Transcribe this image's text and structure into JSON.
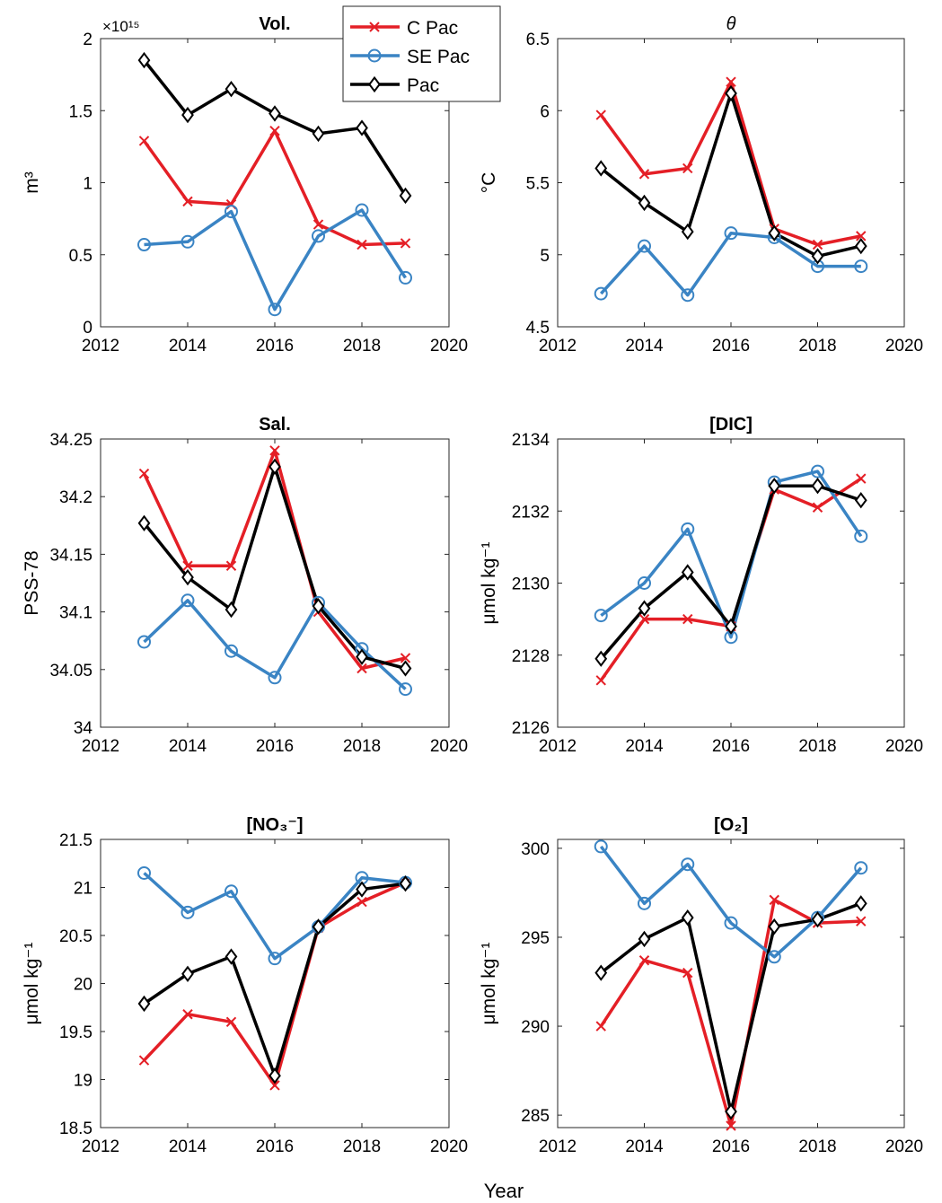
{
  "figure": {
    "xlabel": "Year",
    "legend": [
      {
        "name": "C Pac",
        "color": "#e41f26",
        "marker": "x"
      },
      {
        "name": "SE Pac",
        "color": "#3a84c4",
        "marker": "circle"
      },
      {
        "name": "Pac",
        "color": "#000000",
        "marker": "diamond"
      }
    ]
  },
  "chart_data": [
    {
      "type": "line",
      "title": "Vol.",
      "ylabel": "m³",
      "exponent": "×10¹⁵",
      "x": [
        2013,
        2014,
        2015,
        2016,
        2017,
        2018,
        2019
      ],
      "xlim": [
        2012,
        2020
      ],
      "xticks": [
        2012,
        2014,
        2016,
        2018,
        2020
      ],
      "ylim": [
        0,
        2
      ],
      "yticks": [
        0,
        0.5,
        1,
        1.5,
        2
      ],
      "yticklabels": [
        "0",
        "0.5",
        "1",
        "1.5",
        "2"
      ],
      "series": [
        {
          "name": "C Pac",
          "values": [
            1.29,
            0.87,
            0.85,
            1.36,
            0.71,
            0.57,
            0.58
          ]
        },
        {
          "name": "SE Pac",
          "values": [
            0.57,
            0.59,
            0.8,
            0.12,
            0.63,
            0.81,
            0.34
          ]
        },
        {
          "name": "Pac",
          "values": [
            1.85,
            1.47,
            1.65,
            1.48,
            1.34,
            1.38,
            0.91
          ]
        }
      ]
    },
    {
      "type": "line",
      "title": "θ",
      "ylabel": "°C",
      "x": [
        2013,
        2014,
        2015,
        2016,
        2017,
        2018,
        2019
      ],
      "xlim": [
        2012,
        2020
      ],
      "xticks": [
        2012,
        2014,
        2016,
        2018,
        2020
      ],
      "ylim": [
        4.5,
        6.5
      ],
      "yticks": [
        4.5,
        5,
        5.5,
        6,
        6.5
      ],
      "yticklabels": [
        "4.5",
        "5",
        "5.5",
        "6",
        "6.5"
      ],
      "series": [
        {
          "name": "C Pac",
          "values": [
            5.97,
            5.56,
            5.6,
            6.2,
            5.18,
            5.07,
            5.13
          ]
        },
        {
          "name": "SE Pac",
          "values": [
            4.73,
            5.06,
            4.72,
            5.15,
            5.12,
            4.92,
            4.92
          ]
        },
        {
          "name": "Pac",
          "values": [
            5.6,
            5.36,
            5.16,
            6.12,
            5.15,
            4.99,
            5.06
          ]
        }
      ]
    },
    {
      "type": "line",
      "title": "Sal.",
      "ylabel": "PSS-78",
      "x": [
        2013,
        2014,
        2015,
        2016,
        2017,
        2018,
        2019
      ],
      "xlim": [
        2012,
        2020
      ],
      "xticks": [
        2012,
        2014,
        2016,
        2018,
        2020
      ],
      "ylim": [
        34,
        34.25
      ],
      "yticks": [
        34,
        34.05,
        34.1,
        34.15,
        34.2,
        34.25
      ],
      "yticklabels": [
        "34",
        "34.05",
        "34.1",
        "34.15",
        "34.2",
        "34.25"
      ],
      "series": [
        {
          "name": "C Pac",
          "values": [
            34.22,
            34.14,
            34.14,
            34.24,
            34.1,
            34.051,
            34.06
          ]
        },
        {
          "name": "SE Pac",
          "values": [
            34.074,
            34.11,
            34.066,
            34.043,
            34.108,
            34.068,
            34.033
          ]
        },
        {
          "name": "Pac",
          "values": [
            34.177,
            34.13,
            34.102,
            34.226,
            34.105,
            34.061,
            34.051
          ]
        }
      ]
    },
    {
      "type": "line",
      "title": "[DIC]",
      "ylabel": "μmol kg⁻¹",
      "x": [
        2013,
        2014,
        2015,
        2016,
        2017,
        2018,
        2019
      ],
      "xlim": [
        2012,
        2020
      ],
      "xticks": [
        2012,
        2014,
        2016,
        2018,
        2020
      ],
      "ylim": [
        2126,
        2134
      ],
      "yticks": [
        2126,
        2128,
        2130,
        2132,
        2134
      ],
      "yticklabels": [
        "2126",
        "2128",
        "2130",
        "2132",
        "2134"
      ],
      "series": [
        {
          "name": "C Pac",
          "values": [
            2127.3,
            2129.0,
            2129.0,
            2128.8,
            2132.6,
            2132.1,
            2132.9
          ]
        },
        {
          "name": "SE Pac",
          "values": [
            2129.1,
            2130.0,
            2131.5,
            2128.5,
            2132.8,
            2133.1,
            2131.3
          ]
        },
        {
          "name": "Pac",
          "values": [
            2127.9,
            2129.3,
            2130.3,
            2128.8,
            2132.7,
            2132.7,
            2132.3
          ]
        }
      ]
    },
    {
      "type": "line",
      "title": "[NO₃⁻]",
      "ylabel": "μmol kg⁻¹",
      "x": [
        2013,
        2014,
        2015,
        2016,
        2017,
        2018,
        2019
      ],
      "xlim": [
        2012,
        2020
      ],
      "xticks": [
        2012,
        2014,
        2016,
        2018,
        2020
      ],
      "ylim": [
        18.5,
        21.5
      ],
      "yticks": [
        18.5,
        19,
        19.5,
        20,
        20.5,
        21,
        21.5
      ],
      "yticklabels": [
        "18.5",
        "19",
        "19.5",
        "20",
        "20.5",
        "21",
        "21.5"
      ],
      "series": [
        {
          "name": "C Pac",
          "values": [
            19.2,
            19.68,
            19.6,
            18.94,
            20.58,
            20.85,
            21.05
          ]
        },
        {
          "name": "SE Pac",
          "values": [
            21.15,
            20.74,
            20.96,
            20.26,
            20.59,
            21.1,
            21.05
          ]
        },
        {
          "name": "Pac",
          "values": [
            19.79,
            20.1,
            20.28,
            19.04,
            20.59,
            20.98,
            21.04
          ]
        }
      ]
    },
    {
      "type": "line",
      "title": "[O₂]",
      "ylabel": "μmol kg⁻¹",
      "x": [
        2013,
        2014,
        2015,
        2016,
        2017,
        2018,
        2019
      ],
      "xlim": [
        2012,
        2020
      ],
      "xticks": [
        2012,
        2014,
        2016,
        2018,
        2020
      ],
      "ylim": [
        284.3,
        300.5
      ],
      "yticks": [
        285,
        290,
        295,
        300
      ],
      "yticklabels": [
        "285",
        "290",
        "295",
        "300"
      ],
      "series": [
        {
          "name": "C Pac",
          "values": [
            290.0,
            293.7,
            293.0,
            284.4,
            297.1,
            295.8,
            295.9
          ]
        },
        {
          "name": "SE Pac",
          "values": [
            300.1,
            296.9,
            299.1,
            295.8,
            293.9,
            296.1,
            298.9
          ]
        },
        {
          "name": "Pac",
          "values": [
            293.0,
            294.9,
            296.1,
            285.2,
            295.6,
            296.0,
            296.9
          ]
        }
      ]
    }
  ]
}
